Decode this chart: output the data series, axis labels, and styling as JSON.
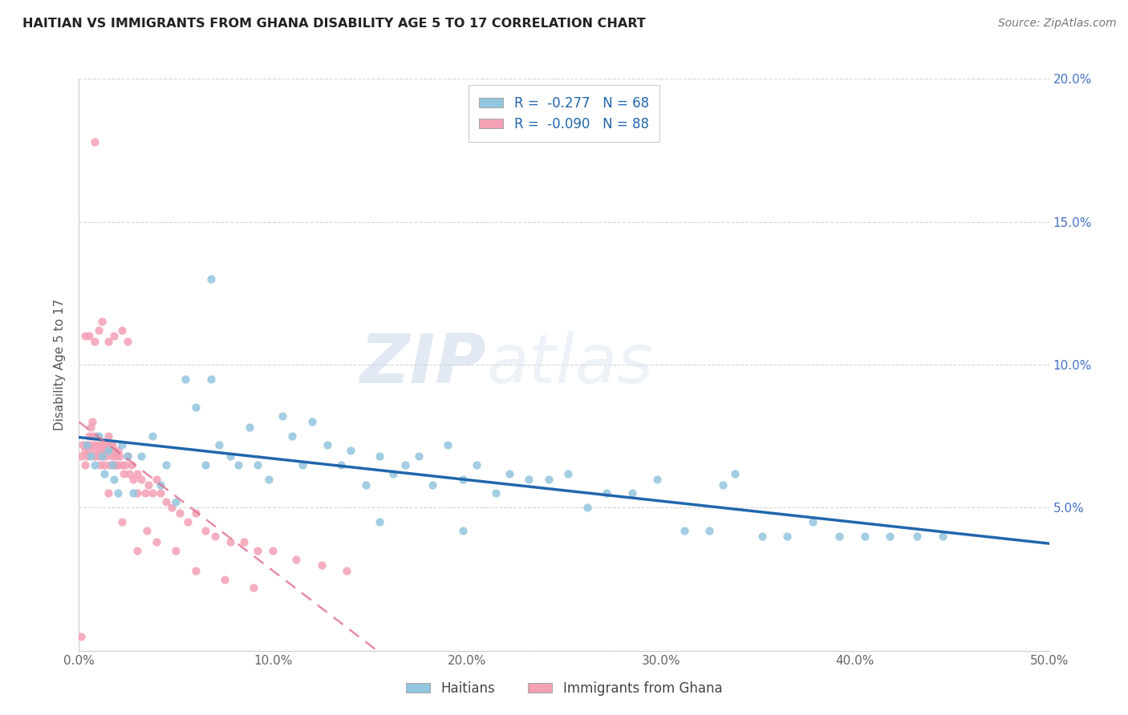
{
  "title": "HAITIAN VS IMMIGRANTS FROM GHANA DISABILITY AGE 5 TO 17 CORRELATION CHART",
  "source": "Source: ZipAtlas.com",
  "ylabel": "Disability Age 5 to 17",
  "xlim": [
    0,
    0.5
  ],
  "ylim": [
    0,
    0.2
  ],
  "blue_color": "#92c5de",
  "pink_color": "#f4a0b5",
  "blue_line_color": "#2166ac",
  "pink_line_color": "#e07090",
  "legend_blue_R": "-0.277",
  "legend_blue_N": "68",
  "legend_pink_R": "-0.090",
  "legend_pink_N": "88",
  "watermark_zip": "ZIP",
  "watermark_atlas": "atlas",
  "haitians_label": "Haitians",
  "ghana_label": "Immigrants from Ghana",
  "blue_scatter_x": [
    0.004,
    0.006,
    0.008,
    0.01,
    0.012,
    0.013,
    0.015,
    0.017,
    0.018,
    0.02,
    0.022,
    0.025,
    0.028,
    0.032,
    0.038,
    0.042,
    0.045,
    0.05,
    0.055,
    0.06,
    0.065,
    0.068,
    0.072,
    0.078,
    0.082,
    0.088,
    0.092,
    0.098,
    0.105,
    0.11,
    0.115,
    0.12,
    0.128,
    0.135,
    0.14,
    0.148,
    0.155,
    0.162,
    0.168,
    0.175,
    0.182,
    0.19,
    0.198,
    0.205,
    0.215,
    0.222,
    0.232,
    0.242,
    0.252,
    0.262,
    0.272,
    0.285,
    0.298,
    0.312,
    0.325,
    0.338,
    0.352,
    0.365,
    0.378,
    0.392,
    0.405,
    0.418,
    0.432,
    0.445,
    0.332,
    0.198,
    0.155,
    0.068
  ],
  "blue_scatter_y": [
    0.072,
    0.068,
    0.065,
    0.075,
    0.068,
    0.062,
    0.07,
    0.065,
    0.06,
    0.055,
    0.072,
    0.068,
    0.055,
    0.068,
    0.075,
    0.058,
    0.065,
    0.052,
    0.095,
    0.085,
    0.065,
    0.095,
    0.072,
    0.068,
    0.065,
    0.078,
    0.065,
    0.06,
    0.082,
    0.075,
    0.065,
    0.08,
    0.072,
    0.065,
    0.07,
    0.058,
    0.068,
    0.062,
    0.065,
    0.068,
    0.058,
    0.072,
    0.06,
    0.065,
    0.055,
    0.062,
    0.06,
    0.06,
    0.062,
    0.05,
    0.055,
    0.055,
    0.06,
    0.042,
    0.042,
    0.062,
    0.04,
    0.04,
    0.045,
    0.04,
    0.04,
    0.04,
    0.04,
    0.04,
    0.058,
    0.042,
    0.045,
    0.13
  ],
  "pink_scatter_x": [
    0.001,
    0.002,
    0.003,
    0.003,
    0.004,
    0.004,
    0.005,
    0.005,
    0.006,
    0.006,
    0.007,
    0.007,
    0.008,
    0.008,
    0.009,
    0.009,
    0.01,
    0.01,
    0.011,
    0.011,
    0.012,
    0.012,
    0.013,
    0.013,
    0.014,
    0.014,
    0.015,
    0.015,
    0.016,
    0.016,
    0.017,
    0.017,
    0.018,
    0.018,
    0.019,
    0.019,
    0.02,
    0.02,
    0.021,
    0.022,
    0.023,
    0.024,
    0.025,
    0.026,
    0.027,
    0.028,
    0.03,
    0.032,
    0.034,
    0.036,
    0.038,
    0.04,
    0.042,
    0.045,
    0.048,
    0.052,
    0.056,
    0.06,
    0.065,
    0.07,
    0.078,
    0.085,
    0.092,
    0.1,
    0.112,
    0.125,
    0.138,
    0.003,
    0.005,
    0.008,
    0.01,
    0.012,
    0.015,
    0.018,
    0.022,
    0.025,
    0.03,
    0.035,
    0.04,
    0.05,
    0.06,
    0.075,
    0.09,
    0.008,
    0.015,
    0.022,
    0.03,
    0.001
  ],
  "pink_scatter_y": [
    0.068,
    0.072,
    0.065,
    0.07,
    0.072,
    0.068,
    0.075,
    0.07,
    0.078,
    0.072,
    0.08,
    0.075,
    0.072,
    0.068,
    0.075,
    0.07,
    0.072,
    0.068,
    0.07,
    0.065,
    0.072,
    0.068,
    0.07,
    0.065,
    0.068,
    0.072,
    0.075,
    0.07,
    0.072,
    0.065,
    0.068,
    0.072,
    0.065,
    0.07,
    0.068,
    0.065,
    0.07,
    0.065,
    0.068,
    0.065,
    0.062,
    0.065,
    0.068,
    0.062,
    0.065,
    0.06,
    0.062,
    0.06,
    0.055,
    0.058,
    0.055,
    0.06,
    0.055,
    0.052,
    0.05,
    0.048,
    0.045,
    0.048,
    0.042,
    0.04,
    0.038,
    0.038,
    0.035,
    0.035,
    0.032,
    0.03,
    0.028,
    0.11,
    0.11,
    0.108,
    0.112,
    0.115,
    0.108,
    0.11,
    0.112,
    0.108,
    0.055,
    0.042,
    0.038,
    0.035,
    0.028,
    0.025,
    0.022,
    0.178,
    0.055,
    0.045,
    0.035,
    0.005
  ]
}
